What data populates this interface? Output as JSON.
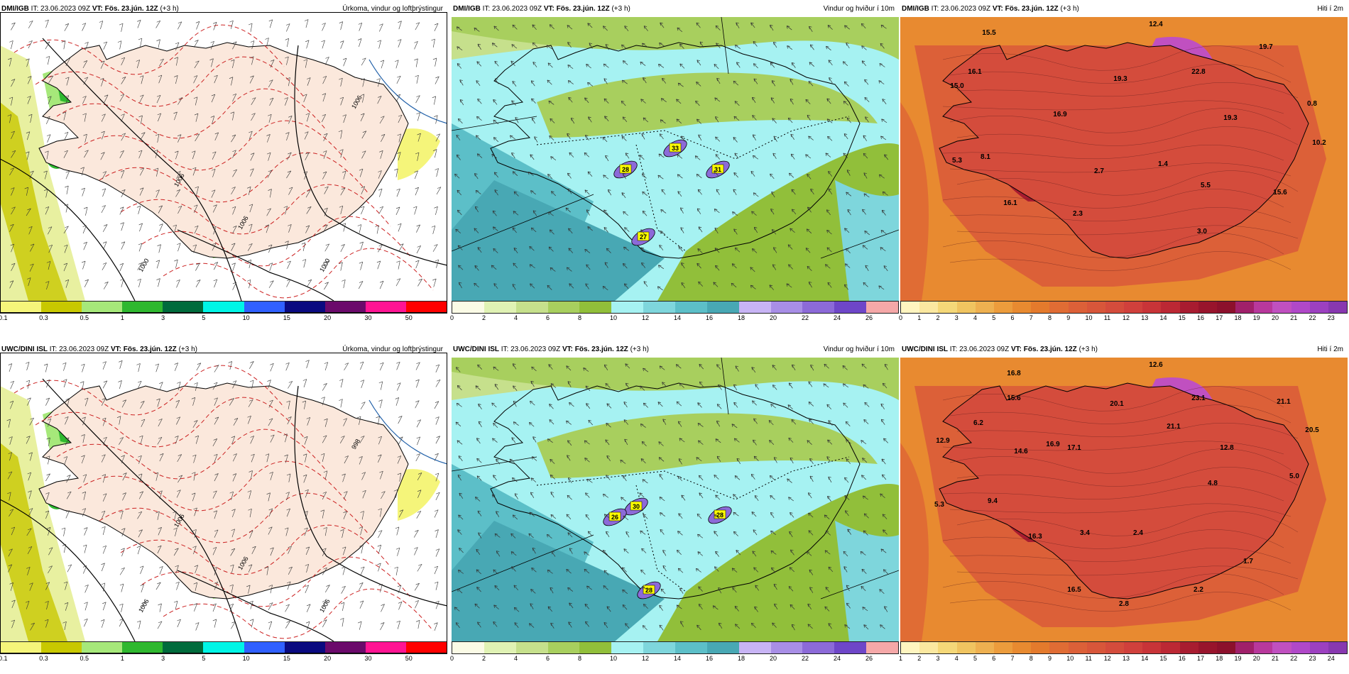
{
  "panels": [
    {
      "id": "p1",
      "model": "DMI/IGB",
      "it_label": "IT: 23.06.2023 09Z",
      "vt_label": "VT: Fös. 23.jún. 12Z",
      "lead": "(+3 h)",
      "variable": "Úrkoma, vindur og loftþrýstingur",
      "kind": "precip",
      "legend_labels": [
        "0.1",
        "0.3",
        "0.5",
        "1",
        "3",
        "5",
        "10",
        "15",
        "20",
        "30",
        "50"
      ],
      "isobar_labels": [
        "1006",
        "1006",
        "1000",
        "1000",
        "1006"
      ],
      "gust_labels": [],
      "temp_labels": []
    },
    {
      "id": "p2",
      "model": "DMI/IGB",
      "it_label": "IT: 23.06.2023 09Z",
      "vt_label": "VT: Fös. 23.jún. 12Z",
      "lead": "(+3 h)",
      "variable": "Vindur og hviður í 10m",
      "kind": "wind",
      "legend_labels": [
        "0",
        "2",
        "4",
        "6",
        "8",
        "10",
        "12",
        "14",
        "16",
        "18",
        "20",
        "22",
        "24",
        "26"
      ],
      "gust_labels": [
        "28",
        "33",
        "31",
        "27"
      ],
      "temp_labels": [],
      "isobar_labels": []
    },
    {
      "id": "p3",
      "model": "DMI/IGB",
      "it_label": "IT: 23.06.2023 09Z",
      "vt_label": "VT: Fös. 23.jún. 12Z",
      "lead": "(+3 h)",
      "variable": "Hiti í 2m",
      "kind": "temp",
      "legend_labels": [
        "0",
        "1",
        "2",
        "3",
        "4",
        "5",
        "6",
        "7",
        "8",
        "9",
        "10",
        "11",
        "12",
        "13",
        "14",
        "15",
        "16",
        "17",
        "18",
        "19",
        "20",
        "21",
        "22",
        "23"
      ],
      "temp_labels": [
        "15.5",
        "12.4",
        "19.7",
        "16.1",
        "15.0",
        "22.8",
        "19.3",
        "16.9",
        "19.3",
        "0.8",
        "10.2",
        "8.1",
        "5.3",
        "2.7",
        "1.4",
        "5.5",
        "15.6",
        "16.1",
        "2.3",
        "3.0"
      ],
      "gust_labels": [],
      "isobar_labels": []
    },
    {
      "id": "p4",
      "model": "UWC/DINI ISL",
      "it_label": "IT: 23.06.2023 09Z",
      "vt_label": "VT: Fös. 23.jún. 12Z",
      "lead": "(+3 h)",
      "variable": "Úrkoma, vindur og loftþrýstingur",
      "kind": "precip",
      "legend_labels": [
        "0.1",
        "0.3",
        "0.5",
        "1",
        "3",
        "5",
        "10",
        "15",
        "20",
        "30",
        "50"
      ],
      "isobar_labels": [
        "998",
        "1006",
        "1006",
        "1006",
        "1006"
      ],
      "gust_labels": [],
      "temp_labels": []
    },
    {
      "id": "p5",
      "model": "UWC/DINI ISL",
      "it_label": "IT: 23.06.2023 09Z",
      "vt_label": "VT: Fös. 23.jún. 12Z",
      "lead": "(+3 h)",
      "variable": "Vindur og hviður í 10m",
      "kind": "wind",
      "legend_labels": [
        "0",
        "2",
        "4",
        "6",
        "8",
        "10",
        "12",
        "14",
        "16",
        "18",
        "20",
        "22",
        "24",
        "26"
      ],
      "gust_labels": [
        "30",
        "26",
        "28",
        "28"
      ],
      "temp_labels": [],
      "isobar_labels": []
    },
    {
      "id": "p6",
      "model": "UWC/DINI ISL",
      "it_label": "IT: 23.06.2023 09Z",
      "vt_label": "VT: Fös. 23.jún. 12Z",
      "lead": "(+3 h)",
      "variable": "Hiti í 2m",
      "kind": "temp",
      "legend_labels": [
        "1",
        "2",
        "3",
        "4",
        "5",
        "6",
        "7",
        "8",
        "9",
        "10",
        "11",
        "12",
        "13",
        "14",
        "15",
        "16",
        "17",
        "18",
        "19",
        "20",
        "21",
        "22",
        "23",
        "24"
      ],
      "temp_labels": [
        "16.8",
        "12.6",
        "23.1",
        "21.1",
        "15.6",
        "6.2",
        "20.1",
        "20.5",
        "12.9",
        "14.6",
        "17.1",
        "16.9",
        "21.1",
        "12.8",
        "5.0",
        "9.4",
        "4.8",
        "5.3",
        "16.3",
        "3.4",
        "2.4",
        "1.7",
        "16.5",
        "2.2",
        "2.8"
      ],
      "gust_labels": [],
      "isobar_labels": []
    }
  ],
  "colors": {
    "precip_scale": [
      "#f5f57a",
      "#c8c800",
      "#a6e87a",
      "#2fb82f",
      "#006b3c",
      "#00f5e6",
      "#3060ff",
      "#0a0a80",
      "#6b0a6b",
      "#ff1493",
      "#ff0000"
    ],
    "wind_scale": [
      "#fbfbe6",
      "#e0f2b4",
      "#c6e08c",
      "#a8cf5e",
      "#91bf3a",
      "#a6f2f2",
      "#7ed6dc",
      "#5cbfc8",
      "#48a8b4",
      "#c8b4f5",
      "#a88ee6",
      "#8c6ad8",
      "#6e46c8",
      "#f5a8a8"
    ],
    "temp_scale": [
      "#fff5c0",
      "#fbe8a0",
      "#f5d878",
      "#f0c460",
      "#eeb050",
      "#ec9c3c",
      "#e88a30",
      "#e47a2c",
      "#e06c34",
      "#dc6038",
      "#d8563a",
      "#d44c3c",
      "#d0403c",
      "#c83438",
      "#bc2834",
      "#a81c30",
      "#98142c",
      "#8c102c",
      "#a0206a",
      "#b8389c",
      "#c050c0",
      "#b048c8",
      "#9c40c0",
      "#8838b0"
    ]
  }
}
